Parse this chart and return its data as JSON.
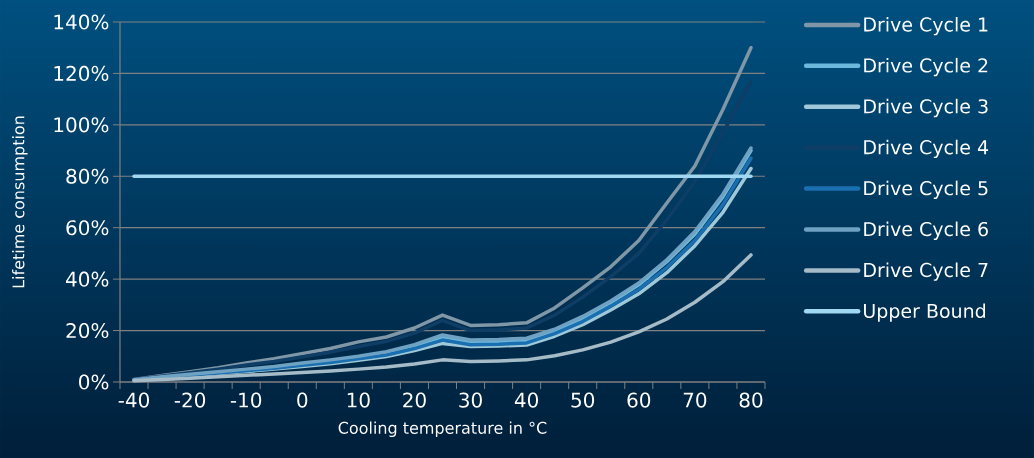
{
  "chart_data": {
    "type": "line",
    "xlabel": "Cooling temperature in °C",
    "ylabel": "Lifetime consumption",
    "categories": [
      "-40",
      null,
      "-20",
      null,
      "-10",
      null,
      "0",
      null,
      "10",
      null,
      "20",
      null,
      "30",
      null,
      "40",
      null,
      "50",
      null,
      "60",
      null,
      "70",
      null,
      "80"
    ],
    "series": [
      {
        "name": "Drive Cycle 1",
        "color": "#7f97a6",
        "values": [
          1,
          2.5,
          4,
          5.5,
          7.4,
          9,
          11,
          13,
          15.6,
          17.5,
          21,
          26,
          22,
          22.3,
          23,
          28.8,
          36.6,
          44.8,
          55,
          69.6,
          84,
          106,
          130
        ]
      },
      {
        "name": "Drive Cycle 2",
        "color": "#6cb8dc",
        "values": [
          0.8,
          1.8,
          2.8,
          3.7,
          4.6,
          5.6,
          6.9,
          8.1,
          9.5,
          11.2,
          13.8,
          17.5,
          15.5,
          15.7,
          16.2,
          19.8,
          24.8,
          30.8,
          37.8,
          46.8,
          57.5,
          72,
          90
        ]
      },
      {
        "name": "Drive Cycle 3",
        "color": "#9fc8d8",
        "values": [
          0.7,
          1.6,
          2.4,
          3.3,
          4.1,
          5,
          6,
          7.1,
          8.4,
          9.9,
          12.2,
          15,
          13.8,
          14,
          14.4,
          17.8,
          22.3,
          28,
          34.3,
          42.5,
          53,
          66,
          83
        ]
      },
      {
        "name": "Drive Cycle 4",
        "color": "#0e3d66",
        "values": [
          1,
          2.3,
          3.6,
          5,
          6.6,
          8,
          9.8,
          11.6,
          13.8,
          15.8,
          19,
          24,
          20,
          20.3,
          21,
          26,
          33,
          41,
          50,
          63,
          78,
          97,
          117
        ]
      },
      {
        "name": "Drive Cycle 5",
        "color": "#1a6fb0",
        "values": [
          0.8,
          1.7,
          2.6,
          3.5,
          4.4,
          5.3,
          6.5,
          7.6,
          9,
          10.5,
          13,
          16.3,
          14.5,
          14.7,
          15.2,
          18.8,
          23.5,
          29.5,
          36,
          44.5,
          55,
          69,
          87
        ]
      },
      {
        "name": "Drive Cycle 6",
        "color": "#6fa2c2",
        "values": [
          0.9,
          2,
          3,
          4,
          5,
          6,
          7.4,
          8.6,
          10,
          11.8,
          14.5,
          18.3,
          16.3,
          16.5,
          17,
          20.5,
          25.5,
          31.5,
          38.5,
          47.5,
          58.5,
          73,
          91
        ]
      },
      {
        "name": "Drive Cycle 7",
        "color": "#a5bcc8",
        "values": [
          0.5,
          1,
          1.5,
          2,
          2.6,
          3.1,
          3.7,
          4.3,
          5,
          5.8,
          7,
          8.6,
          8,
          8.2,
          8.6,
          10.2,
          12.5,
          15.5,
          19.5,
          24.5,
          31,
          39,
          49.4
        ]
      },
      {
        "name": "Upper Bound",
        "color": "#9fd8f0",
        "values": [
          80,
          80,
          80,
          80,
          80,
          80,
          80,
          80,
          80,
          80,
          80,
          80,
          80,
          80,
          80,
          80,
          80,
          80,
          80,
          80,
          80,
          80,
          80
        ]
      }
    ],
    "ylim": [
      0,
      140
    ],
    "yticks": [
      {
        "value": 0,
        "label": "0%"
      },
      {
        "value": 20,
        "label": "20%"
      },
      {
        "value": 40,
        "label": "40%"
      },
      {
        "value": 60,
        "label": "60%"
      },
      {
        "value": 80,
        "label": "80%"
      },
      {
        "value": 100,
        "label": "100%"
      },
      {
        "value": 120,
        "label": "120%"
      },
      {
        "value": 140,
        "label": "140%"
      }
    ],
    "grid": "y",
    "legend": "right",
    "marker": "none",
    "line_style": "solid"
  }
}
